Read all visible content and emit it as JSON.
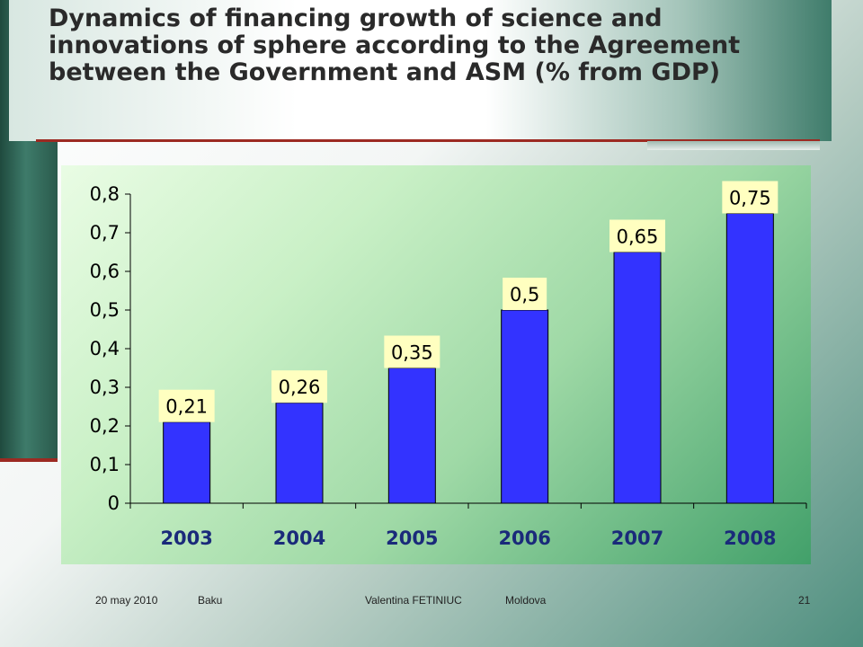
{
  "slide": {
    "title": "Dynamics of financing growth of science and innovations of sphere according to the Agreement between the Government and ASM (% from GDP)"
  },
  "chart_data": {
    "type": "bar",
    "categories": [
      "2003",
      "2004",
      "2005",
      "2006",
      "2007",
      "2008"
    ],
    "values": [
      0.21,
      0.26,
      0.35,
      0.5,
      0.65,
      0.75
    ],
    "data_labels": [
      "0,21",
      "0,26",
      "0,35",
      "0,5",
      "0,65",
      "0,75"
    ],
    "y_ticks": [
      "0",
      "0,1",
      "0,2",
      "0,3",
      "0,4",
      "0,5",
      "0,6",
      "0,7",
      "0,8"
    ],
    "ylim": [
      0,
      0.8
    ],
    "grid": false,
    "legend": "none",
    "colors": {
      "bar": "#3333ff",
      "label_bg": "#ffffc0",
      "category_text": "#1a2a7a"
    }
  },
  "footer": {
    "date": "20 may 2010",
    "city": "Baku",
    "author": "Valentina FETINIUC",
    "country": "Moldova",
    "page": "21"
  }
}
